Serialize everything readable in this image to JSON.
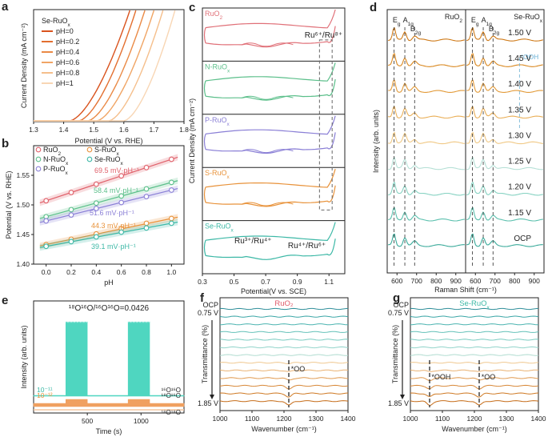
{
  "chart_data": [
    {
      "id": "a",
      "panel_label": "a",
      "type": "line",
      "legend_title": "Se-RuO",
      "legend_title_sub": "x",
      "legend_entries": [
        "pH=0",
        "pH=0.2",
        "pH=0.4",
        "pH=0.6",
        "pH=0.8",
        "pH=1"
      ],
      "colors": [
        "#d9531e",
        "#e36f30",
        "#ea8a46",
        "#f0a565",
        "#f5bf8c",
        "#f8d6b4"
      ],
      "xlabel": "Potential (V vs. RHE)",
      "ylabel": "Current Density (mA cm⁻²)",
      "xlim": [
        1.3,
        1.8
      ],
      "xticks": [
        "1.3",
        "1.4",
        "1.5",
        "1.6",
        "1.7",
        "1.8"
      ],
      "onset": [
        1.42,
        1.45,
        1.48,
        1.51,
        1.55,
        1.6
      ],
      "top_x": [
        1.62,
        1.64,
        1.67,
        1.7,
        1.73,
        1.77
      ]
    },
    {
      "id": "b",
      "panel_label": "b",
      "type": "scatter",
      "xlabel": "pH",
      "ylabel": "Potential (V vs. RHE)",
      "xlim": [
        -0.1,
        1.1
      ],
      "ylim": [
        1.4,
        1.6
      ],
      "xticks": [
        "0.0",
        "0.2",
        "0.4",
        "0.6",
        "0.8",
        "1.0"
      ],
      "yticks": [
        "1.40",
        "1.45",
        "1.50",
        "1.55"
      ],
      "x": [
        0,
        0.2,
        0.4,
        0.6,
        0.8,
        1.0
      ],
      "series": [
        {
          "name": "RuO2",
          "label": "RuO",
          "sub": "2",
          "color": "#e0606a",
          "slope_label": "69.5 mV·pH⁻¹",
          "values": [
            1.507,
            1.521,
            1.535,
            1.549,
            1.563,
            1.577
          ]
        },
        {
          "name": "N-RuOx",
          "label": "N-RuO",
          "sub": "x",
          "color": "#5bbf8a",
          "slope_label": "58.4 mV·pH⁻¹",
          "values": [
            1.48,
            1.492,
            1.503,
            1.515,
            1.527,
            1.538
          ]
        },
        {
          "name": "P-RuOx",
          "label": "P-RuO",
          "sub": "x",
          "color": "#8a7fd6",
          "slope_label": "51.6 mV·pH⁻¹",
          "values": [
            1.473,
            1.483,
            1.494,
            1.504,
            1.514,
            1.525
          ]
        },
        {
          "name": "S-RuOx",
          "label": "S-RuO",
          "sub": "x",
          "color": "#e8923a",
          "slope_label": "44.3 mV·pH⁻¹",
          "values": [
            1.433,
            1.442,
            1.451,
            1.46,
            1.469,
            1.477
          ]
        },
        {
          "name": "Se-RuOx",
          "label": "Se-RuO",
          "sub": "x",
          "color": "#3cb8a6",
          "slope_label": "39.1 mV·pH⁻¹",
          "values": [
            1.43,
            1.438,
            1.446,
            1.454,
            1.461,
            1.469
          ]
        }
      ]
    },
    {
      "id": "c",
      "panel_label": "c",
      "type": "line",
      "xlabel": "Potential(V vs. SCE)",
      "ylabel": "Current Density (mA cm⁻²)",
      "xlim": [
        0.3,
        1.2
      ],
      "xticks": [
        "0.3",
        "0.5",
        "0.7",
        "0.9",
        "1.1"
      ],
      "samples": [
        {
          "label": "RuO",
          "sub": "2",
          "color": "#e07078"
        },
        {
          "label": "N-RuO",
          "sub": "x",
          "color": "#5bbf8a"
        },
        {
          "label": "P-RuO",
          "sub": "x",
          "color": "#8a7fd6"
        },
        {
          "label": "S-RuO",
          "sub": "x",
          "color": "#e8923a"
        },
        {
          "label": "Se-RuO",
          "sub": "x",
          "color": "#3cb8a6"
        }
      ],
      "annotation_top": "Ru⁶⁺/Ru⁸⁺",
      "annotation_bottom_left": "Ru³⁺/Ru⁴⁺",
      "annotation_bottom_right": "Ru⁴⁺/Ru⁶⁺",
      "dashed_box_x": [
        1.04,
        1.12
      ]
    },
    {
      "id": "d",
      "panel_label": "d",
      "type": "line",
      "xlabel": "Raman Shift (cm⁻¹)",
      "ylabel": "Intensity (arb. units)",
      "subpanels": [
        {
          "label": "RuO",
          "sub": "2",
          "xticks": [
            "600",
            "700",
            "800",
            "900"
          ],
          "xlim": [
            550,
            950
          ]
        },
        {
          "label": "Se-RuO",
          "sub": "x",
          "xticks": [
            "600",
            "700",
            "800",
            "900"
          ],
          "xlim": [
            550,
            950
          ]
        }
      ],
      "potentials": [
        "1.50 V",
        "1.45 V",
        "1.40 V",
        "1.35 V",
        "1.30 V",
        "1.25 V",
        "1.20 V",
        "1.15 V",
        "OCP"
      ],
      "colors": [
        "#cf7a18",
        "#d98820",
        "#e29a38",
        "#eab05a",
        "#f0c884",
        "#b6e0d6",
        "#86d2c2",
        "#5cc0ae",
        "#3aaa9a"
      ],
      "peak_labels": {
        "eg": "E",
        "eg_sub": "g",
        "a1g": "A",
        "a1g_sub": "1g",
        "b2g": "B",
        "b2g_sub": "2g"
      },
      "ooh_label": "*OOH"
    },
    {
      "id": "e",
      "panel_label": "e",
      "type": "area",
      "xlabel": "Time (s)",
      "ylabel": "Intensity (arb. units)",
      "xlim": [
        0,
        1400
      ],
      "xticks": [
        "500",
        "1000"
      ],
      "title_ratio": "¹⁸O¹⁶O/¹⁶O¹⁶O=0.0426",
      "pulses": [
        [
          300,
          500
        ],
        [
          880,
          1080
        ]
      ],
      "scale_top": "10⁻¹¹",
      "scale_bottom": "10⁻¹²",
      "trace_labels": [
        "¹⁶O¹⁶O",
        "¹⁸O¹⁶O",
        "¹⁸O¹⁸O"
      ],
      "colors": [
        "#4fd6c0",
        "#f0a060",
        "#f5c7a0"
      ]
    },
    {
      "id": "f",
      "panel_label": "f",
      "type": "line",
      "title": "RuO₂",
      "xlabel": "Wavenumber (cm⁻¹)",
      "ylabel": "Transmittance (%)",
      "xlim": [
        1000,
        1400
      ],
      "xticks": [
        "1000",
        "1100",
        "1200",
        "1300",
        "1400"
      ],
      "label_top": "OCP",
      "label_second": "0.75 V",
      "label_bottom": "1.85 V",
      "band_label": "*OO",
      "band_positions": [
        1215
      ],
      "title_color": "#e05a6a"
    },
    {
      "id": "g",
      "panel_label": "g",
      "type": "line",
      "title": "Se-RuO",
      "title_sub": "x",
      "xlabel": "Wavenumber (cm⁻¹)",
      "ylabel": "Transmittance (%)",
      "xlim": [
        1000,
        1400
      ],
      "xticks": [
        "1000",
        "1100",
        "1200",
        "1300",
        "1400"
      ],
      "label_top": "OCP",
      "label_second": "0.75 V",
      "label_bottom": "1.85 V",
      "band_label_1": "*OOH",
      "band_label_2": "*OO",
      "band_positions": [
        1060,
        1215
      ],
      "title_color": "#3cb8a6"
    }
  ]
}
